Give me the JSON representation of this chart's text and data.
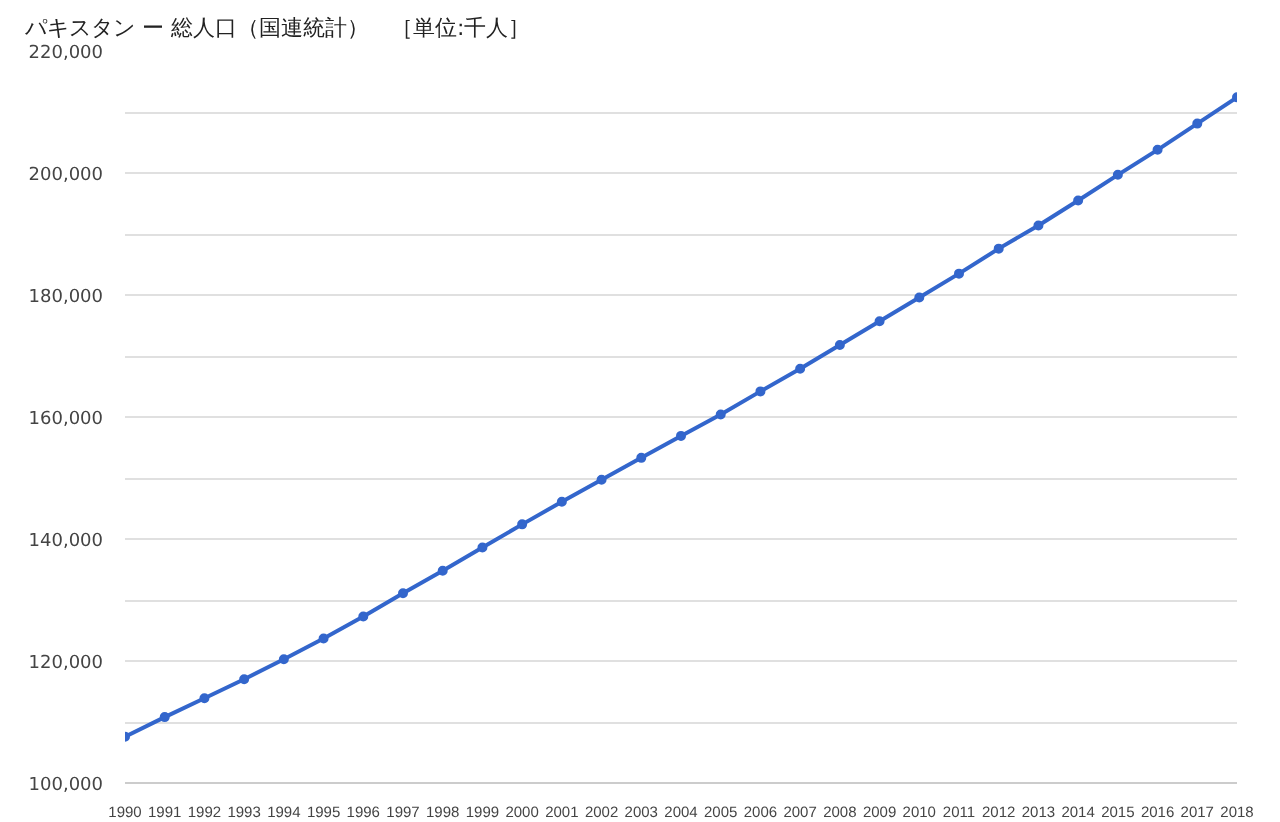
{
  "chart_data": {
    "type": "line",
    "title": "パキスタン ー 総人口（国連統計）　［単位:千人］",
    "x": [
      1990,
      1991,
      1992,
      1993,
      1994,
      1995,
      1996,
      1997,
      1998,
      1999,
      2000,
      2001,
      2002,
      2003,
      2004,
      2005,
      2006,
      2007,
      2008,
      2009,
      2010,
      2011,
      2012,
      2013,
      2014,
      2015,
      2016,
      2017,
      2018
    ],
    "series": [
      {
        "color": "#3366cc",
        "values": [
          107600,
          110800,
          113900,
          117000,
          120300,
          123700,
          127300,
          131100,
          134800,
          138600,
          142400,
          146100,
          149700,
          153300,
          156900,
          160400,
          164200,
          167900,
          171800,
          175700,
          179600,
          183500,
          187600,
          191400,
          195500,
          199700,
          203800,
          208100,
          212400
        ]
      }
    ],
    "xlim": [
      1990,
      2018
    ],
    "xticks": [
      1990,
      1991,
      1992,
      1993,
      1994,
      1995,
      1996,
      1997,
      1998,
      1999,
      2000,
      2001,
      2002,
      2003,
      2004,
      2005,
      2006,
      2007,
      2008,
      2009,
      2010,
      2011,
      2012,
      2013,
      2014,
      2015,
      2016,
      2017,
      2018
    ],
    "ylim": [
      100000,
      220000
    ],
    "yticks": [
      {
        "value": 100000,
        "label": "100,000"
      },
      {
        "value": 110000,
        "label": null
      },
      {
        "value": 120000,
        "label": "120,000"
      },
      {
        "value": 130000,
        "label": null
      },
      {
        "value": 140000,
        "label": "140,000"
      },
      {
        "value": 150000,
        "label": null
      },
      {
        "value": 160000,
        "label": "160,000"
      },
      {
        "value": 170000,
        "label": null
      },
      {
        "value": 180000,
        "label": "180,000"
      },
      {
        "value": 190000,
        "label": null
      },
      {
        "value": 200000,
        "label": "200,000"
      },
      {
        "value": 210000,
        "label": null
      },
      {
        "value": 220000,
        "label": "220,000"
      }
    ],
    "grid": "y",
    "marker": "circle",
    "line_style": "solid"
  }
}
